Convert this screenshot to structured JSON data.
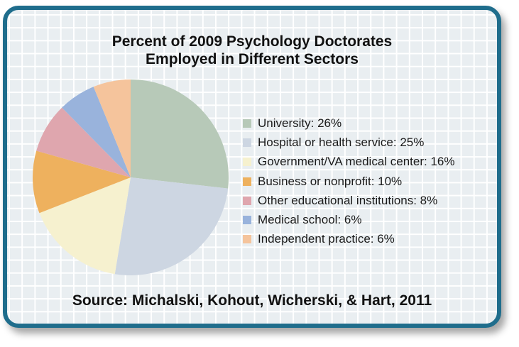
{
  "chart_data": {
    "type": "pie",
    "title_line1": "Percent of 2009 Psychology Doctorates",
    "title_line2": "Employed in Different Sectors",
    "source": "Source: Michalski, Kohout, Wicherski, & Hart, 2011",
    "legend_position": "right",
    "categories": [
      "University",
      "Hospital or health service",
      "Government/VA medical center",
      "Business or nonprofit",
      "Other educational institutions",
      "Medical school",
      "Independent practice"
    ],
    "values": [
      26,
      25,
      16,
      10,
      8,
      6,
      6
    ],
    "legend_labels": [
      "University: 26%",
      "Hospital or health service: 25%",
      "Government/VA medical center: 16%",
      "Business or nonprofit: 10%",
      "Other educational institutions: 8%",
      "Medical school: 6%",
      "Independent practice: 6%"
    ],
    "colors": [
      "#b7c9b8",
      "#cdd6e2",
      "#f6f1cf",
      "#eeb15e",
      "#dfa6ae",
      "#99b3dc",
      "#f5c49c"
    ],
    "start_angle_deg": 0,
    "direction": "clockwise"
  }
}
